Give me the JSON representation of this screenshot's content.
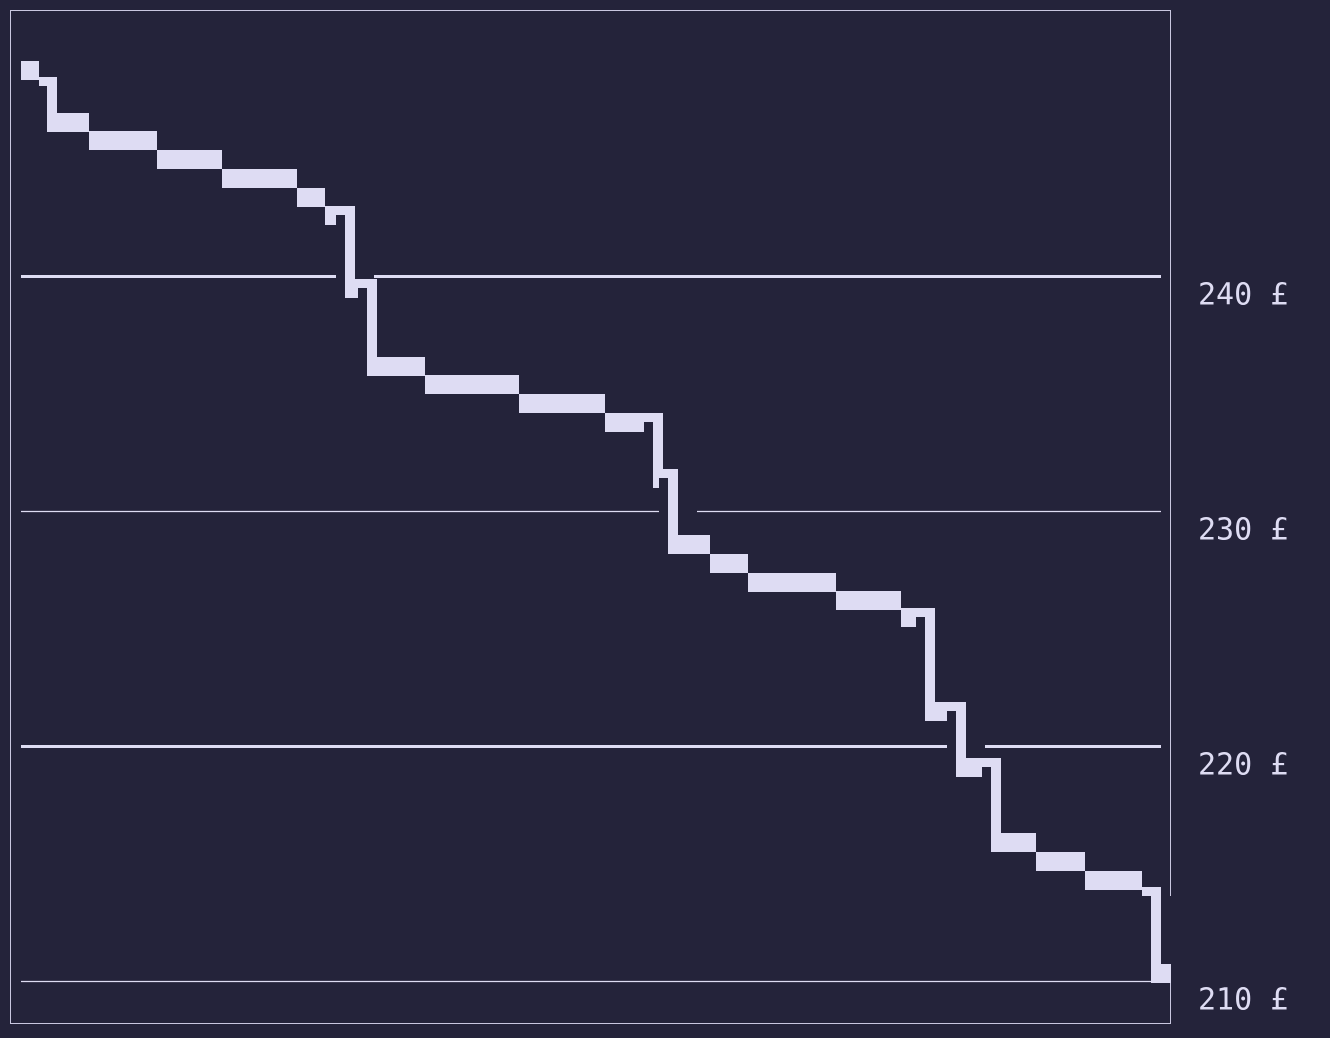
{
  "colors": {
    "background": "#24233a",
    "line": "#dedcf3",
    "frame": "#c9c7e0",
    "text": "#dedcf3"
  },
  "chart_data": {
    "type": "line",
    "style": "stepped pixel-block line",
    "title": "",
    "xlabel": "",
    "ylabel": "",
    "y_axis_position": "right",
    "ylim": [
      209,
      250.5
    ],
    "xlim": [
      0,
      1
    ],
    "y_ticks": [
      {
        "value": 240,
        "label": "240 £"
      },
      {
        "value": 230,
        "label": "230 £"
      },
      {
        "value": 220,
        "label": "220 £"
      },
      {
        "value": 210,
        "label": "210 £"
      }
    ],
    "grid": true,
    "legend": "none",
    "series": [
      {
        "x": [
          0.0,
          0.016,
          0.032,
          0.06,
          0.119,
          0.176,
          0.242,
          0.267,
          0.293,
          0.312,
          0.354,
          0.437,
          0.512,
          0.563,
          0.576,
          0.604,
          0.638,
          0.715,
          0.772,
          0.802,
          0.829,
          0.86,
          0.89,
          0.933,
          0.983,
          1.0
        ],
        "y": [
          248.8,
          248.1,
          246.6,
          245.8,
          245.0,
          244.2,
          243.4,
          242.6,
          239.5,
          236.2,
          235.4,
          234.6,
          233.8,
          231.4,
          228.6,
          227.8,
          227.0,
          226.2,
          225.5,
          221.5,
          219.1,
          215.9,
          215.1,
          214.3,
          213.6,
          210.3
        ]
      }
    ]
  }
}
